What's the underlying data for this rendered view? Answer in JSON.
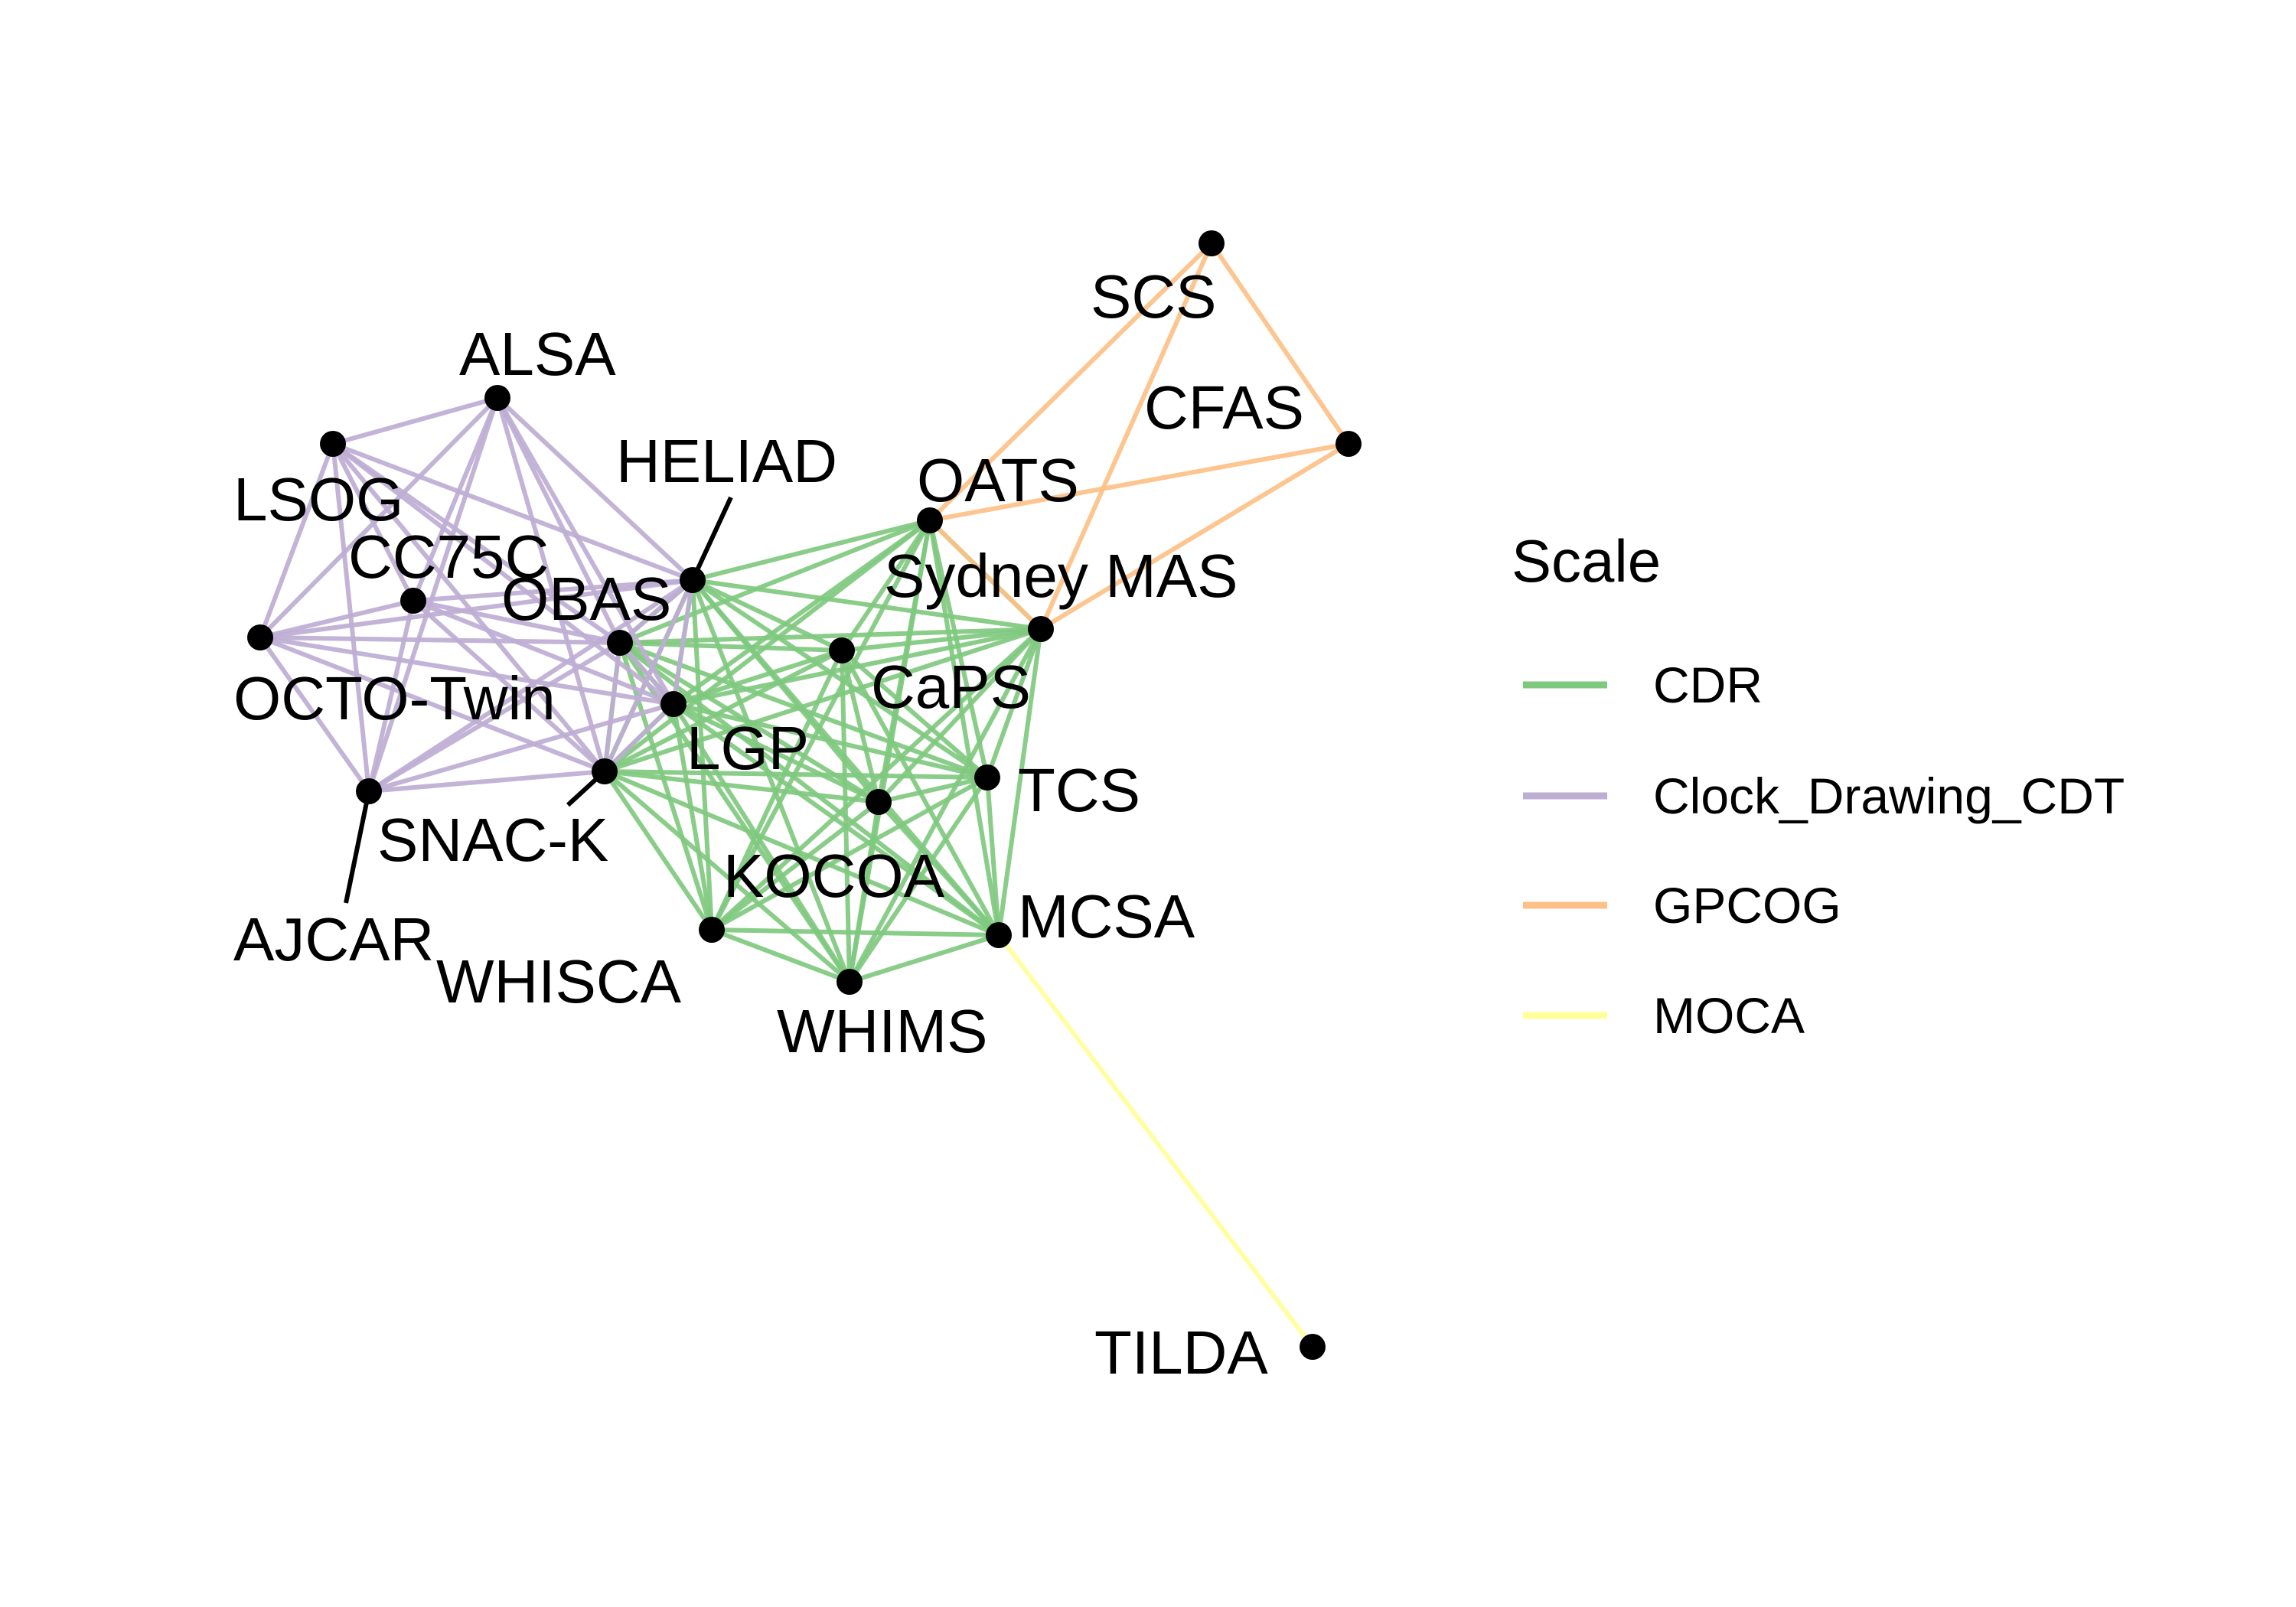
{
  "nodes": [
    {
      "id": "ALSA",
      "label": "ALSA"
    },
    {
      "id": "LSOG",
      "label": "LSOG"
    },
    {
      "id": "CC75C",
      "label": "CC75C"
    },
    {
      "id": "OBAS",
      "label": "OBAS"
    },
    {
      "id": "HELIAD",
      "label": "HELIAD"
    },
    {
      "id": "OCTO-Twin",
      "label": "OCTO-Twin"
    },
    {
      "id": "SNAC-K",
      "label": "SNAC-K"
    },
    {
      "id": "AJCAR",
      "label": "AJCAR"
    },
    {
      "id": "LGP",
      "label": "LGP"
    },
    {
      "id": "KOCOA",
      "label": "KOCOA"
    },
    {
      "id": "WHISCA",
      "label": "WHISCA"
    },
    {
      "id": "WHIMS",
      "label": "WHIMS"
    },
    {
      "id": "MCSA",
      "label": "MCSA"
    },
    {
      "id": "TCS",
      "label": "TCS"
    },
    {
      "id": "CaPS",
      "label": "CaPS"
    },
    {
      "id": "Sydney MAS",
      "label": "Sydney MAS"
    },
    {
      "id": "OATS",
      "label": "OATS"
    },
    {
      "id": "SCS",
      "label": "SCS"
    },
    {
      "id": "CFAS",
      "label": "CFAS"
    },
    {
      "id": "TILDA",
      "label": "TILDA"
    }
  ],
  "scales": [
    {
      "name": "CDR",
      "color": "#7fc97f",
      "members": [
        "HELIAD",
        "OBAS",
        "SNAC-K",
        "LGP",
        "KOCOA",
        "WHISCA",
        "WHIMS",
        "MCSA",
        "TCS",
        "CaPS",
        "Sydney MAS",
        "OATS"
      ]
    },
    {
      "name": "Clock_Drawing_CDT",
      "color": "#beaed4",
      "members": [
        "ALSA",
        "LSOG",
        "CC75C",
        "OBAS",
        "HELIAD",
        "OCTO-Twin",
        "SNAC-K",
        "AJCAR",
        "LGP"
      ]
    },
    {
      "name": "GPCOG",
      "color": "#fdc086",
      "members": [
        "SCS",
        "CFAS",
        "OATS",
        "Sydney MAS"
      ]
    },
    {
      "name": "MOCA",
      "color": "#ffff99",
      "members": [
        "MCSA",
        "TILDA"
      ]
    }
  ],
  "legend": {
    "title": "Scale",
    "items": [
      {
        "label": "CDR",
        "color": "#7fc97f"
      },
      {
        "label": "Clock_Drawing_CDT",
        "color": "#beaed4"
      },
      {
        "label": "GPCOG",
        "color": "#fdc086"
      },
      {
        "label": "MOCA",
        "color": "#ffff99"
      }
    ]
  },
  "node_color": "#000000"
}
